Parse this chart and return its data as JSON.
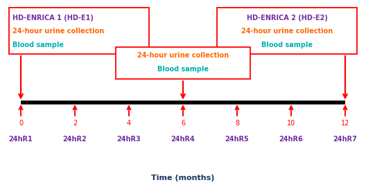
{
  "tick_positions": [
    0,
    2,
    4,
    6,
    8,
    10,
    12
  ],
  "tick_labels": [
    "0",
    "2",
    "4",
    "6",
    "8",
    "10",
    "12"
  ],
  "sample_labels": [
    "24hR1",
    "24hR2",
    "24hR3",
    "24hR4",
    "24hR5",
    "24hR6",
    "24hR7"
  ],
  "sample_label_color": "#7030A0",
  "tick_label_color": "#FF0000",
  "xlabel": "Time (months)",
  "xlabel_color": "#17375E",
  "box1_title": "HD-ENRICA 1 (HD-E1)",
  "box1_line2": "24-hour urine collection",
  "box1_line3": "Blood sample",
  "box2_title": "HD-ENRICA 2 (HD-E2)",
  "box2_line2": "24-hour urine collection",
  "box2_line3": "Blood sample",
  "box3_line1": "24-hour urine collection",
  "box3_line2": "Blood sample",
  "title_color": "#7030A0",
  "urine_color": "#FF6600",
  "blood_color": "#00B0B0",
  "box_edge_color": "#FF0000",
  "arrow_color": "#FF0000",
  "timeline_color": "#000000",
  "bg_color": "#FFFFFF"
}
